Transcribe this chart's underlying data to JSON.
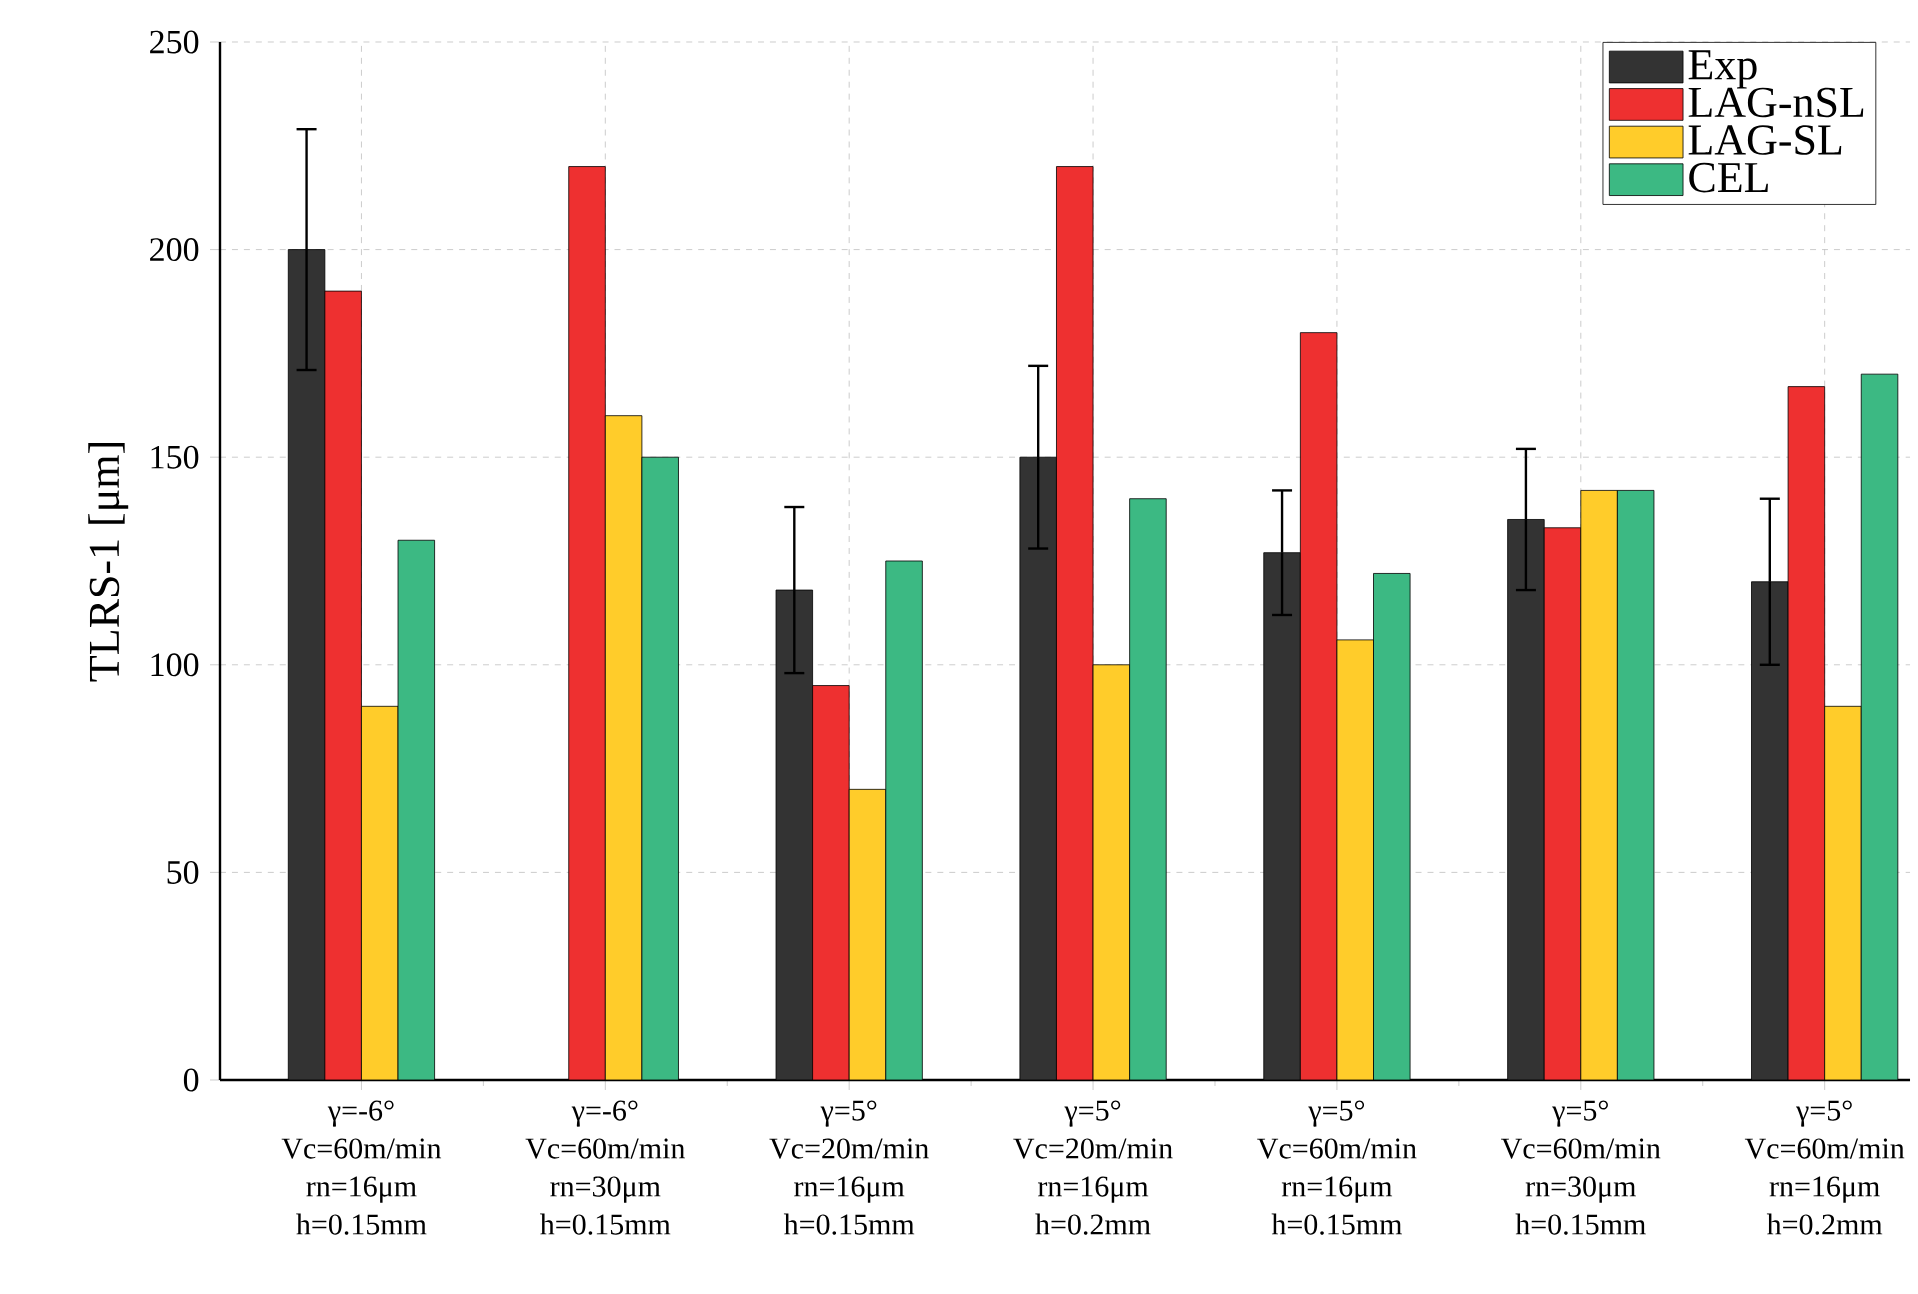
{
  "chart_data": {
    "type": "bar",
    "ylabel": "TLRS-1 [μm]",
    "categories": [
      "γ=-6° Vc=60m/min rn=16μm h=0.15mm",
      "γ=-6° Vc=60m/min rn=30μm h=0.15mm",
      "γ=5° Vc=20m/min rn=16μm h=0.15mm",
      "γ=5° Vc=20m/min rn=16μm h=0.2mm",
      "γ=5° Vc=60m/min rn=16μm h=0.15mm",
      "γ=5° Vc=60m/min rn=30μm h=0.15mm",
      "γ=5° Vc=60m/min rn=16μm h=0.2mm"
    ],
    "series": [
      {
        "name": "Exp",
        "color": "#333333",
        "values": [
          200,
          null,
          118,
          150,
          127,
          135,
          120
        ],
        "errors": [
          [
            171,
            229
          ],
          null,
          [
            98,
            138
          ],
          [
            128,
            172
          ],
          [
            112,
            142
          ],
          [
            118,
            152
          ],
          [
            100,
            140
          ]
        ]
      },
      {
        "name": "LAG-nSL",
        "color": "#ee3030",
        "values": [
          190,
          220,
          95,
          220,
          180,
          133,
          167
        ]
      },
      {
        "name": "LAG-SL",
        "color": "#ffcc2a",
        "values": [
          90,
          160,
          70,
          100,
          106,
          142,
          90
        ]
      },
      {
        "name": "CEL",
        "color": "#3cb983",
        "values": [
          130,
          150,
          125,
          140,
          122,
          142,
          170
        ]
      }
    ],
    "ylim": [
      0,
      250
    ],
    "yticks": [
      0,
      50,
      100,
      150,
      200,
      250
    ],
    "grid": true,
    "legend": "top right"
  }
}
